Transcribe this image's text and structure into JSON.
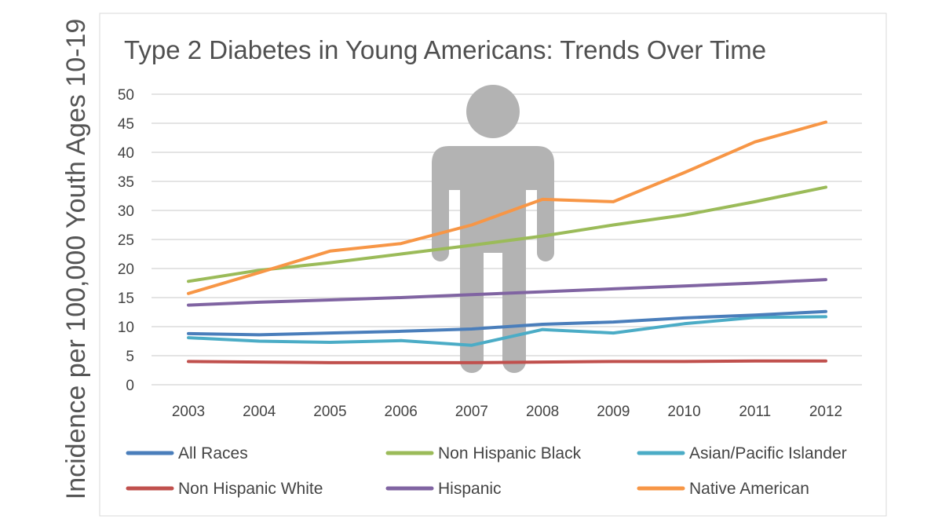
{
  "chart_data": {
    "type": "line",
    "title": "Type 2 Diabetes in Young Americans: Trends Over Time",
    "ylabel": "Incidence per 100,000 Youth Ages 10-19",
    "xlabel": "",
    "categories": [
      "2003",
      "2004",
      "2005",
      "2006",
      "2007",
      "2008",
      "2009",
      "2010",
      "2011",
      "2012"
    ],
    "yticks": [
      "0",
      "5",
      "10",
      "15",
      "20",
      "25",
      "30",
      "35",
      "40",
      "45",
      "50"
    ],
    "ylim": [
      0,
      50
    ],
    "grid": true,
    "legend_position": "bottom",
    "series": [
      {
        "name": "All Races",
        "color": "#4a7ebb",
        "values": [
          8.8,
          8.6,
          8.9,
          9.2,
          9.6,
          10.4,
          10.8,
          11.5,
          12.0,
          12.6
        ]
      },
      {
        "name": "Non Hispanic Black",
        "color": "#9bbb59",
        "values": [
          17.8,
          19.7,
          21.0,
          22.5,
          24.0,
          25.6,
          27.5,
          29.2,
          31.5,
          34.0
        ]
      },
      {
        "name": "Asian/Pacific Islander",
        "color": "#4bacc6",
        "values": [
          8.1,
          7.5,
          7.3,
          7.6,
          6.8,
          9.5,
          8.9,
          10.5,
          11.6,
          11.7
        ]
      },
      {
        "name": "Non Hispanic White",
        "color": "#c0504d",
        "values": [
          4.0,
          3.9,
          3.8,
          3.8,
          3.8,
          3.9,
          4.0,
          4.0,
          4.1,
          4.1
        ]
      },
      {
        "name": "Hispanic",
        "color": "#8064a2",
        "values": [
          13.7,
          14.2,
          14.6,
          15.0,
          15.5,
          16.0,
          16.5,
          17.0,
          17.5,
          18.1
        ]
      },
      {
        "name": "Native American",
        "color": "#f79646",
        "values": [
          15.7,
          19.3,
          23.0,
          24.3,
          27.5,
          31.9,
          31.5,
          36.5,
          41.8,
          45.2
        ]
      }
    ]
  },
  "colors": {
    "figure": "#b3b3b3",
    "grid": "#d4d4d4"
  },
  "decoration": {
    "icon": "person-silhouette-icon"
  }
}
